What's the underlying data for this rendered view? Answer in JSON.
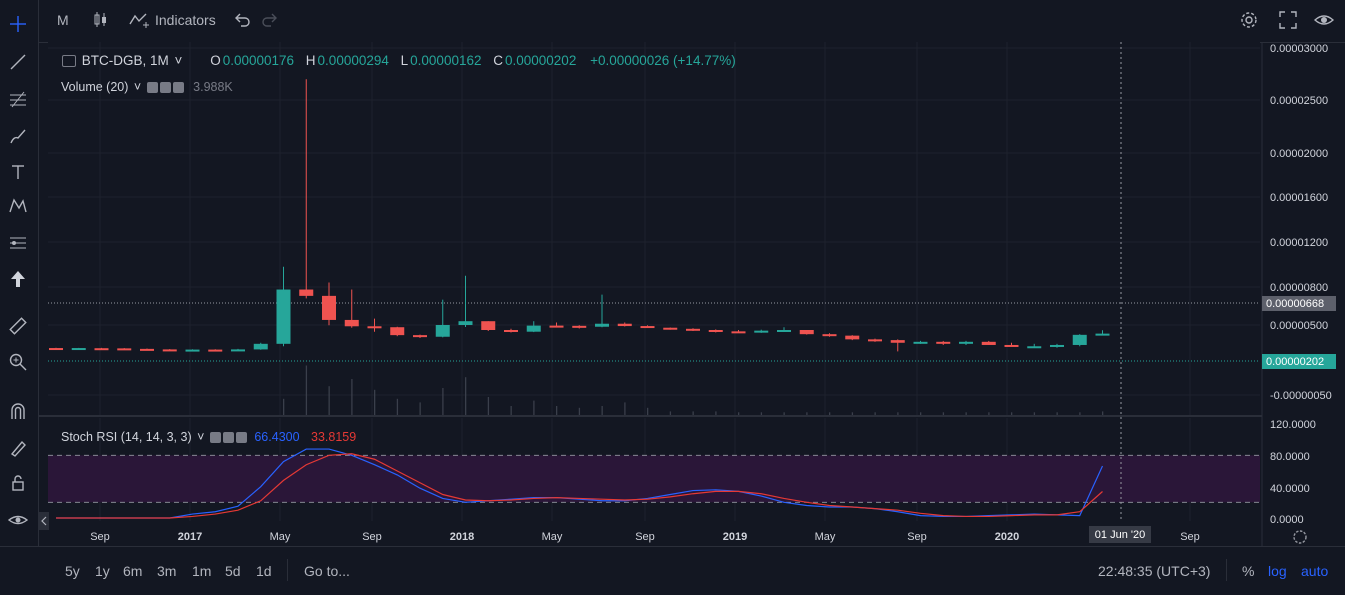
{
  "toolbar": {
    "interval": "M",
    "indicators_label": "Indicators"
  },
  "legend": {
    "symbol": "BTC-DGB, 1M",
    "o_label": "O",
    "o_value": "0.00000176",
    "h_label": "H",
    "h_value": "0.00000294",
    "l_label": "L",
    "l_value": "0.00000162",
    "c_label": "C",
    "c_value": "0.00000202",
    "change": "+0.00000026 (+14.77%)"
  },
  "volume_legend": {
    "label": "Volume (20)",
    "value": "3.988K"
  },
  "stoch_legend": {
    "label": "Stoch RSI (14, 14, 3, 3)",
    "k_value": "66.4300",
    "d_value": "33.8159"
  },
  "price_axis": {
    "ticks": [
      "0.00003000",
      "0.00002500",
      "0.00002000",
      "0.00001600",
      "0.00001200",
      "0.00000800",
      "0.00000500",
      "-0.00000050"
    ],
    "last_price_label": "0.00000202",
    "line_price_label": "0.00000668"
  },
  "rsi_axis": {
    "ticks": [
      "120.0000",
      "80.0000",
      "40.0000",
      "0.0000"
    ]
  },
  "time_axis": {
    "ticks": [
      "Sep",
      "2017",
      "May",
      "Sep",
      "2018",
      "May",
      "Sep",
      "2019",
      "May",
      "Sep",
      "2020",
      "Sep"
    ],
    "crosshair_label": "01 Jun '20"
  },
  "bottom": {
    "ranges": [
      "5y",
      "1y",
      "6m",
      "3m",
      "1m",
      "5d",
      "1d"
    ],
    "goto": "Go to...",
    "clock": "22:48:35 (UTC+3)",
    "percent": "%",
    "log": "log",
    "auto": "auto"
  },
  "colors": {
    "up": "#26a69a",
    "down": "#ef5350",
    "stoch_k": "#2962ff",
    "stoch_d": "#e53935",
    "band": "#2a1638"
  },
  "chart_data": {
    "type": "candlestick",
    "candles": [
      {
        "o": 1.8e-07,
        "h": 2e-07,
        "l": 1.4e-07,
        "c": 1.6e-07
      },
      {
        "o": 1.6e-07,
        "h": 1.9e-07,
        "l": 1.3e-07,
        "c": 1.8e-07
      },
      {
        "o": 1.7e-07,
        "h": 1.9e-07,
        "l": 1.4e-07,
        "c": 1.6e-07
      },
      {
        "o": 1.6e-07,
        "h": 1.8e-07,
        "l": 1.1e-07,
        "c": 1.3e-07
      },
      {
        "o": 1.3e-07,
        "h": 1.5e-07,
        "l": 9e-08,
        "c": 1e-07
      },
      {
        "o": 1e-07,
        "h": 1.2e-07,
        "l": 8e-08,
        "c": 9e-08
      },
      {
        "o": 9e-08,
        "h": 1.1e-07,
        "l": 8e-08,
        "c": 9e-08
      },
      {
        "o": 9e-08,
        "h": 1.1e-07,
        "l": 7e-08,
        "c": 8e-08
      },
      {
        "o": 8e-08,
        "h": 1.3e-07,
        "l": 7e-08,
        "c": 1e-07
      },
      {
        "o": 1e-07,
        "h": 6e-07,
        "l": 8e-08,
        "c": 5e-07
      },
      {
        "o": 5e-07,
        "h": 9.8e-06,
        "l": 3e-07,
        "c": 7.8e-06
      },
      {
        "o": 7.8e-06,
        "h": 2.7e-05,
        "l": 7.1e-06,
        "c": 7.3e-06
      },
      {
        "o": 7.3e-06,
        "h": 8.4e-06,
        "l": 4.9e-06,
        "c": 5.4e-06
      },
      {
        "o": 5.4e-06,
        "h": 7.8e-06,
        "l": 3.8e-06,
        "c": 4.4e-06
      },
      {
        "o": 4.4e-06,
        "h": 5.5e-06,
        "l": 2.5e-06,
        "c": 4e-06
      },
      {
        "o": 4e-06,
        "h": 4.2e-06,
        "l": 1.5e-06,
        "c": 1.7e-06
      },
      {
        "o": 1.7e-06,
        "h": 1.8e-06,
        "l": 1.2e-06,
        "c": 1.4e-06
      },
      {
        "o": 1.4e-06,
        "h": 7e-06,
        "l": 1.3e-06,
        "c": 5e-06
      },
      {
        "o": 5e-06,
        "h": 9e-06,
        "l": 4.1e-06,
        "c": 5.3e-06
      },
      {
        "o": 5.3e-06,
        "h": 5.3e-06,
        "l": 2.7e-06,
        "c": 3e-06
      },
      {
        "o": 3e-06,
        "h": 3.4e-06,
        "l": 2.3e-06,
        "c": 2.5e-06
      },
      {
        "o": 2.5e-06,
        "h": 5.3e-06,
        "l": 2.4e-06,
        "c": 4.7e-06
      },
      {
        "o": 4.7e-06,
        "h": 5.2e-06,
        "l": 4.4e-06,
        "c": 4.6e-06
      },
      {
        "o": 4.6e-06,
        "h": 4.9e-06,
        "l": 3.5e-06,
        "c": 4.2e-06
      },
      {
        "o": 4.2e-06,
        "h": 7.4e-06,
        "l": 4e-06,
        "c": 5.1e-06
      },
      {
        "o": 5.1e-06,
        "h": 5.2e-06,
        "l": 4.3e-06,
        "c": 4.5e-06
      },
      {
        "o": 4.5e-06,
        "h": 4.8e-06,
        "l": 3.7e-06,
        "c": 3.8e-06
      },
      {
        "o": 3.8e-06,
        "h": 3.9e-06,
        "l": 3.1e-06,
        "c": 3.4e-06
      },
      {
        "o": 3.4e-06,
        "h": 3.6e-06,
        "l": 2.7e-06,
        "c": 3e-06
      },
      {
        "o": 3e-06,
        "h": 3.2e-06,
        "l": 2.3e-06,
        "c": 2.6e-06
      },
      {
        "o": 2.6e-06,
        "h": 3e-06,
        "l": 2.4e-06,
        "c": 2.4e-06
      },
      {
        "o": 2.4e-06,
        "h": 3.1e-06,
        "l": 2.2e-06,
        "c": 2.8e-06
      },
      {
        "o": 2.7e-06,
        "h": 4e-06,
        "l": 2.5e-06,
        "c": 3e-06
      },
      {
        "o": 3e-06,
        "h": 3e-06,
        "l": 1.8e-06,
        "c": 1.9e-06
      },
      {
        "o": 1.9e-06,
        "h": 2.1e-06,
        "l": 1.4e-06,
        "c": 1.6e-06
      },
      {
        "o": 1.6e-06,
        "h": 1.7e-06,
        "l": 9e-07,
        "c": 1e-06
      },
      {
        "o": 1e-06,
        "h": 1.1e-06,
        "l": 7e-07,
        "c": 9e-07
      },
      {
        "o": 9e-07,
        "h": 1e-06,
        "l": 0.0,
        "c": 6e-07
      },
      {
        "o": 6e-07,
        "h": 8e-07,
        "l": 5e-07,
        "c": 7e-07
      },
      {
        "o": 7e-07,
        "h": 8e-07,
        "l": 4e-07,
        "c": 5e-07
      },
      {
        "o": 5e-07,
        "h": 8e-07,
        "l": 4e-07,
        "c": 7e-07
      },
      {
        "o": 7e-07,
        "h": 8e-07,
        "l": 4e-07,
        "c": 4e-07
      },
      {
        "o": 4e-07,
        "h": 6e-07,
        "l": 3e-07,
        "c": 3e-07
      },
      {
        "o": 3e-07,
        "h": 5e-07,
        "l": 2e-07,
        "c": 3e-07
      },
      {
        "o": 3e-07,
        "h": 5e-07,
        "l": 2e-07,
        "c": 4e-07
      },
      {
        "o": 4e-07,
        "h": 1.9e-06,
        "l": 3e-07,
        "c": 1.76e-06
      },
      {
        "o": 1.76e-06,
        "h": 2.94e-06,
        "l": 1.62e-06,
        "c": 2.02e-06
      }
    ],
    "volume": [
      0,
      0,
      0,
      0,
      0,
      0,
      0,
      0,
      0,
      0,
      18,
      55,
      32,
      40,
      28,
      18,
      14,
      30,
      42,
      20,
      10,
      16,
      10,
      8,
      10,
      14,
      8,
      4,
      4,
      4,
      3,
      3,
      3,
      3,
      3,
      3,
      3,
      3,
      3,
      3,
      3,
      3,
      3,
      3,
      3,
      3,
      4
    ],
    "stoch_k": [
      0,
      0,
      0,
      0,
      0,
      0,
      5,
      8,
      15,
      40,
      72,
      88,
      88,
      80,
      68,
      55,
      38,
      25,
      20,
      22,
      24,
      26,
      26,
      24,
      22,
      22,
      25,
      30,
      35,
      36,
      34,
      28,
      20,
      16,
      14,
      14,
      12,
      8,
      3,
      2,
      2,
      3,
      4,
      5,
      4,
      3,
      66.43
    ],
    "stoch_d": [
      0,
      0,
      0,
      0,
      0,
      0,
      2,
      5,
      10,
      22,
      48,
      68,
      80,
      82,
      75,
      60,
      45,
      30,
      23,
      22,
      23,
      25,
      26,
      25,
      24,
      23,
      24,
      27,
      31,
      34,
      34,
      31,
      25,
      20,
      16,
      14,
      12,
      10,
      6,
      3,
      2,
      2,
      3,
      4,
      4,
      8,
      33.82
    ],
    "y_range": [
      -5e-07,
      3e-05
    ],
    "y_scale": "log",
    "stoch_ylim": [
      0,
      120
    ],
    "stoch_bands": [
      20,
      80
    ],
    "x_start": "2016-08",
    "x_end": "2020-06"
  }
}
